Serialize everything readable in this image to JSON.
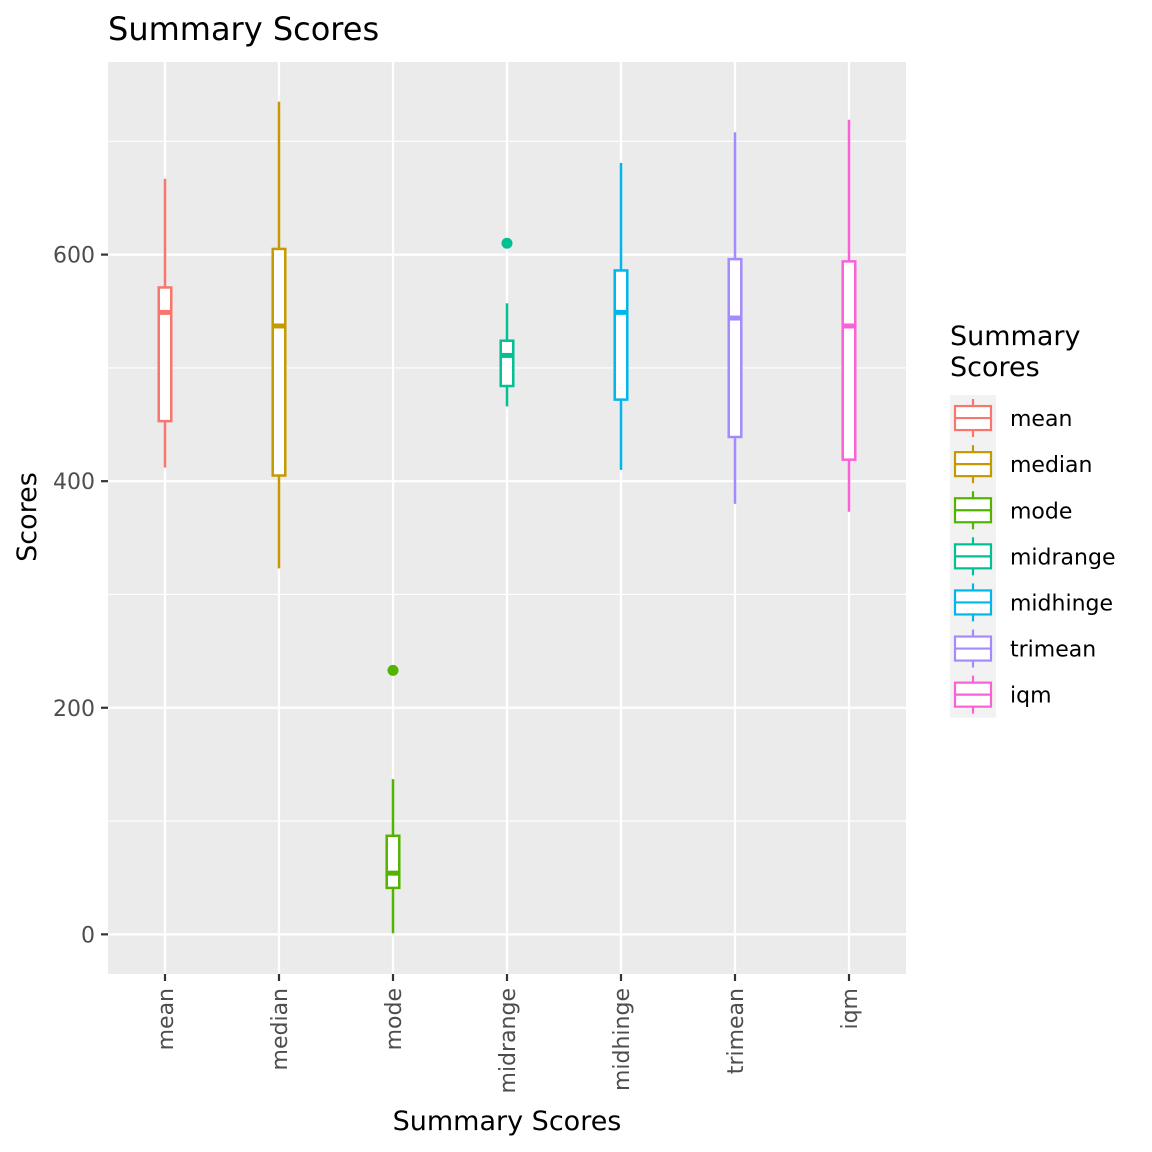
{
  "chart_data": {
    "type": "boxplot",
    "title": "Summary Scores",
    "xlabel": "Summary Scores",
    "ylabel": "Scores",
    "ylim": [
      -35,
      770
    ],
    "y_ticks": [
      0,
      200,
      400,
      600
    ],
    "grid": true,
    "legend": {
      "title_lines": [
        "Summary",
        "Scores"
      ],
      "position": "right"
    },
    "categories": [
      "mean",
      "median",
      "mode",
      "midrange",
      "midhinge",
      "trimean",
      "iqm"
    ],
    "series": [
      {
        "name": "mean",
        "color": "#F8766D",
        "min": 412,
        "q1": 453,
        "median": 549,
        "q3": 571,
        "max": 667,
        "outliers": []
      },
      {
        "name": "median",
        "color": "#C49A00",
        "min": 323,
        "q1": 405,
        "median": 537,
        "q3": 605,
        "max": 735,
        "outliers": []
      },
      {
        "name": "mode",
        "color": "#53B400",
        "min": 1,
        "q1": 41,
        "median": 54,
        "q3": 87,
        "max": 137,
        "outliers": [
          233
        ]
      },
      {
        "name": "midrange",
        "color": "#00C094",
        "min": 466,
        "q1": 484,
        "median": 511,
        "q3": 524,
        "max": 557,
        "outliers": [
          610
        ]
      },
      {
        "name": "midhinge",
        "color": "#00B6EB",
        "min": 410,
        "q1": 472,
        "median": 549,
        "q3": 586,
        "max": 681,
        "outliers": []
      },
      {
        "name": "trimean",
        "color": "#A58AFF",
        "min": 380,
        "q1": 439,
        "median": 544,
        "q3": 596,
        "max": 708,
        "outliers": []
      },
      {
        "name": "iqm",
        "color": "#FB61D7",
        "min": 373,
        "q1": 419,
        "median": 537,
        "q3": 594,
        "max": 719,
        "outliers": []
      }
    ]
  }
}
